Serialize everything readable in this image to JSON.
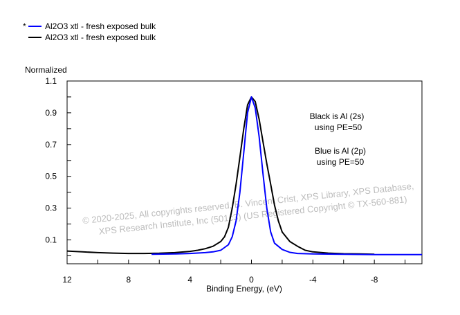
{
  "chart_data": {
    "type": "line",
    "title": "",
    "xlabel": "Binding Energy, (eV)",
    "ylabel": "Normalized",
    "xlim": [
      12,
      -11.1
    ],
    "ylim": [
      -0.05,
      1.1
    ],
    "x_ticks": [
      12,
      8,
      4,
      0,
      -4,
      -8
    ],
    "x_tick_labels": [
      "12",
      "8",
      "4",
      "0",
      "-4",
      "-8"
    ],
    "y_ticks": [
      1.1,
      0.9,
      0.7,
      0.5,
      0.3,
      0.1
    ],
    "y_tick_labels": [
      "1.1",
      "0.9",
      "0.7",
      "0.5",
      "0.3",
      "0.1"
    ],
    "grid": false,
    "legend_placement": "top-left",
    "legend": [
      {
        "marker": "*",
        "label": "Al2O3 xtl - fresh exposed bulk",
        "color": "#0000ff"
      },
      {
        "marker": "",
        "label": "Al2O3 xtl - fresh exposed bulk",
        "color": "#000000"
      }
    ],
    "annotations": [
      {
        "lines": [
          "Black is Al (2s)",
          "using PE=50"
        ]
      },
      {
        "lines": [
          "Blue is Al (2p)",
          "using PE=50"
        ]
      }
    ],
    "watermark": [
      "© 2020-2025,  All copyrights reserved,    B. Vincent Crist,  XPS Library,  XPS Database,",
      "XPS Research Institute, Inc (501c3)   (US Registered Copyright © TX-560-881)"
    ],
    "series": [
      {
        "name": "Al (2p) blue",
        "color": "#0000ff",
        "x": [
          6.5,
          5,
          4,
          3,
          2.5,
          2,
          1.5,
          1.25,
          1,
          0.75,
          0.5,
          0.25,
          0,
          -0.25,
          -0.5,
          -0.75,
          -1,
          -1.25,
          -1.5,
          -2,
          -2.5,
          -3,
          -4,
          -6,
          -8,
          -11.1
        ],
        "y": [
          0.01,
          0.012,
          0.015,
          0.02,
          0.025,
          0.035,
          0.07,
          0.12,
          0.22,
          0.4,
          0.65,
          0.9,
          1.0,
          0.93,
          0.75,
          0.52,
          0.3,
          0.15,
          0.08,
          0.04,
          0.022,
          0.015,
          0.012,
          0.01,
          0.008,
          0.008
        ]
      },
      {
        "name": "Al (2s) black",
        "color": "#000000",
        "x": [
          12,
          11,
          10,
          9,
          8,
          7,
          6,
          5,
          4,
          3.5,
          3,
          2.5,
          2,
          1.75,
          1.5,
          1.25,
          1,
          0.75,
          0.5,
          0.25,
          0,
          -0.25,
          -0.5,
          -0.75,
          -1,
          -1.25,
          -1.5,
          -1.75,
          -2,
          -2.5,
          -3,
          -3.5,
          -4,
          -5,
          -6,
          -7,
          -8
        ],
        "y": [
          0.03,
          0.025,
          0.02,
          0.017,
          0.015,
          0.015,
          0.016,
          0.02,
          0.028,
          0.035,
          0.045,
          0.06,
          0.09,
          0.12,
          0.18,
          0.3,
          0.45,
          0.62,
          0.8,
          0.95,
          1.0,
          0.97,
          0.86,
          0.72,
          0.58,
          0.45,
          0.32,
          0.22,
          0.15,
          0.09,
          0.06,
          0.035,
          0.025,
          0.017,
          0.013,
          0.012,
          0.01
        ]
      }
    ]
  }
}
